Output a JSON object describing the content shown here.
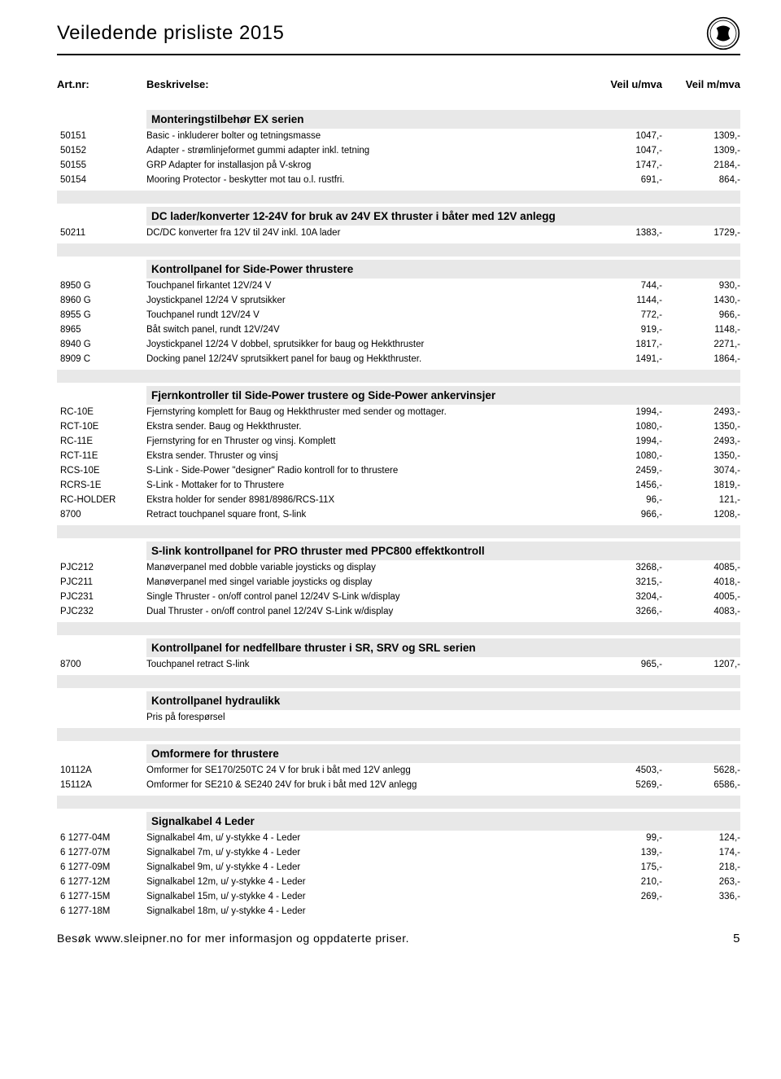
{
  "header": {
    "title": "Veiledende prisliste 2015"
  },
  "columns": {
    "art": "Art.nr:",
    "desc": "Beskrivelse:",
    "p1": "Veil u/mva",
    "p2": "Veil m/mva"
  },
  "sections": [
    {
      "title": "Monteringstilbehør EX serien",
      "rows": [
        {
          "art": "50151",
          "desc": "Basic - inkluderer bolter og tetningsmasse",
          "p1": "1047,-",
          "p2": "1309,-"
        },
        {
          "art": "50152",
          "desc": "Adapter - strømlinjeformet gummi adapter inkl. tetning",
          "p1": "1047,-",
          "p2": "1309,-"
        },
        {
          "art": "50155",
          "desc": "GRP Adapter for installasjon på V-skrog",
          "p1": "1747,-",
          "p2": "2184,-"
        },
        {
          "art": "50154",
          "desc": "Mooring Protector - beskytter mot tau o.l. rustfri.",
          "p1": "691,-",
          "p2": "864,-"
        }
      ]
    },
    {
      "title": "DC lader/konverter 12-24V for bruk av 24V EX thruster i båter med 12V anlegg",
      "rows": [
        {
          "art": "50211",
          "desc": "DC/DC konverter fra 12V til 24V inkl. 10A lader",
          "p1": "1383,-",
          "p2": "1729,-"
        }
      ]
    },
    {
      "title": "Kontrollpanel for Side-Power thrustere",
      "rows": [
        {
          "art": "8950 G",
          "desc": "Touchpanel firkantet 12V/24 V",
          "p1": "744,-",
          "p2": "930,-"
        },
        {
          "art": "8960 G",
          "desc": "Joystickpanel 12/24 V sprutsikker",
          "p1": "1144,-",
          "p2": "1430,-"
        },
        {
          "art": "8955 G",
          "desc": "Touchpanel rundt 12V/24 V",
          "p1": "772,-",
          "p2": "966,-"
        },
        {
          "art": "8965",
          "desc": "Båt switch panel, rundt 12V/24V",
          "p1": "919,-",
          "p2": "1148,-"
        },
        {
          "art": "8940 G",
          "desc": "Joystickpanel 12/24 V dobbel, sprutsikker for baug og Hekkthruster",
          "p1": "1817,-",
          "p2": "2271,-"
        },
        {
          "art": "8909 C",
          "desc": "Docking panel 12/24V sprutsikkert panel for baug og Hekkthruster.",
          "p1": "1491,-",
          "p2": "1864,-"
        }
      ]
    },
    {
      "title": "Fjernkontroller til Side-Power trustere og Side-Power ankervinsjer",
      "rows": [
        {
          "art": "RC-10E",
          "desc": "Fjernstyring komplett for Baug og Hekkthruster med sender og mottager.",
          "p1": "1994,-",
          "p2": "2493,-"
        },
        {
          "art": "RCT-10E",
          "desc": "Ekstra sender. Baug og Hekkthruster.",
          "p1": "1080,-",
          "p2": "1350,-"
        },
        {
          "art": "RC-11E",
          "desc": "Fjernstyring for en Thruster og vinsj. Komplett",
          "p1": "1994,-",
          "p2": "2493,-"
        },
        {
          "art": "RCT-11E",
          "desc": "Ekstra sender. Thruster og vinsj",
          "p1": "1080,-",
          "p2": "1350,-"
        },
        {
          "art": "RCS-10E",
          "desc": "S-Link - Side-Power \"designer\" Radio kontroll for to thrustere",
          "p1": "2459,-",
          "p2": "3074,-"
        },
        {
          "art": "RCRS-1E",
          "desc": "S-Link - Mottaker for to Thrustere",
          "p1": "1456,-",
          "p2": "1819,-"
        },
        {
          "art": "RC-HOLDER",
          "desc": "Ekstra holder for sender 8981/8986/RCS-11X",
          "p1": "96,-",
          "p2": "121,-"
        },
        {
          "art": "8700",
          "desc": "Retract touchpanel square front, S-link",
          "p1": "966,-",
          "p2": "1208,-"
        }
      ]
    },
    {
      "title": "S-link kontrollpanel for PRO thruster med PPC800 effektkontroll",
      "rows": [
        {
          "art": "PJC212",
          "desc": "Manøverpanel med dobble variable joysticks og display",
          "p1": "3268,-",
          "p2": "4085,-"
        },
        {
          "art": "PJC211",
          "desc": "Manøverpanel med singel variable joysticks og display",
          "p1": "3215,-",
          "p2": "4018,-"
        },
        {
          "art": "PJC231",
          "desc": "Single Thruster - on/off control panel 12/24V S-Link w/display",
          "p1": "3204,-",
          "p2": "4005,-"
        },
        {
          "art": "PJC232",
          "desc": "Dual Thruster - on/off control panel 12/24V S-Link w/display",
          "p1": "3266,-",
          "p2": "4083,-"
        }
      ]
    },
    {
      "title": "Kontrollpanel for nedfellbare thruster i SR, SRV og SRL serien",
      "rows": [
        {
          "art": "8700",
          "desc": "Touchpanel retract S-link",
          "p1": "965,-",
          "p2": "1207,-"
        }
      ]
    },
    {
      "title": "Kontrollpanel hydraulikk",
      "subtext": "Pris på forespørsel",
      "rows": []
    },
    {
      "title": "Omformere for thrustere",
      "rows": [
        {
          "art": "10112A",
          "desc": "Omformer for SE170/250TC 24 V for bruk i båt med 12V anlegg",
          "p1": "4503,-",
          "p2": "5628,-"
        },
        {
          "art": "15112A",
          "desc": "Omformer for SE210 & SE240 24V for bruk i båt med 12V anlegg",
          "p1": "5269,-",
          "p2": "6586,-"
        }
      ]
    },
    {
      "title": "Signalkabel 4 Leder",
      "rows": [
        {
          "art": "6 1277-04M",
          "desc": "Signalkabel 4m, u/ y-stykke 4 - Leder",
          "p1": "99,-",
          "p2": "124,-"
        },
        {
          "art": "6 1277-07M",
          "desc": "Signalkabel 7m, u/ y-stykke 4 - Leder",
          "p1": "139,-",
          "p2": "174,-"
        },
        {
          "art": "6 1277-09M",
          "desc": "Signalkabel 9m, u/ y-stykke 4 - Leder",
          "p1": "175,-",
          "p2": "218,-"
        },
        {
          "art": "6 1277-12M",
          "desc": "Signalkabel 12m, u/ y-stykke 4 - Leder",
          "p1": "210,-",
          "p2": "263,-"
        },
        {
          "art": "6 1277-15M",
          "desc": "Signalkabel 15m, u/ y-stykke 4 - Leder",
          "p1": "269,-",
          "p2": "336,-"
        },
        {
          "art": "6 1277-18M",
          "desc": "Signalkabel 18m, u/ y-stykke 4 - Leder",
          "p1": "",
          "p2": ""
        }
      ],
      "noSpacer": true
    }
  ],
  "footer": {
    "text": "Besøk www.sleipner.no for mer informasjon og oppdaterte priser.",
    "page": "5"
  },
  "colors": {
    "section_bg": "#e8e8e8",
    "text": "#000000",
    "bg": "#ffffff"
  }
}
